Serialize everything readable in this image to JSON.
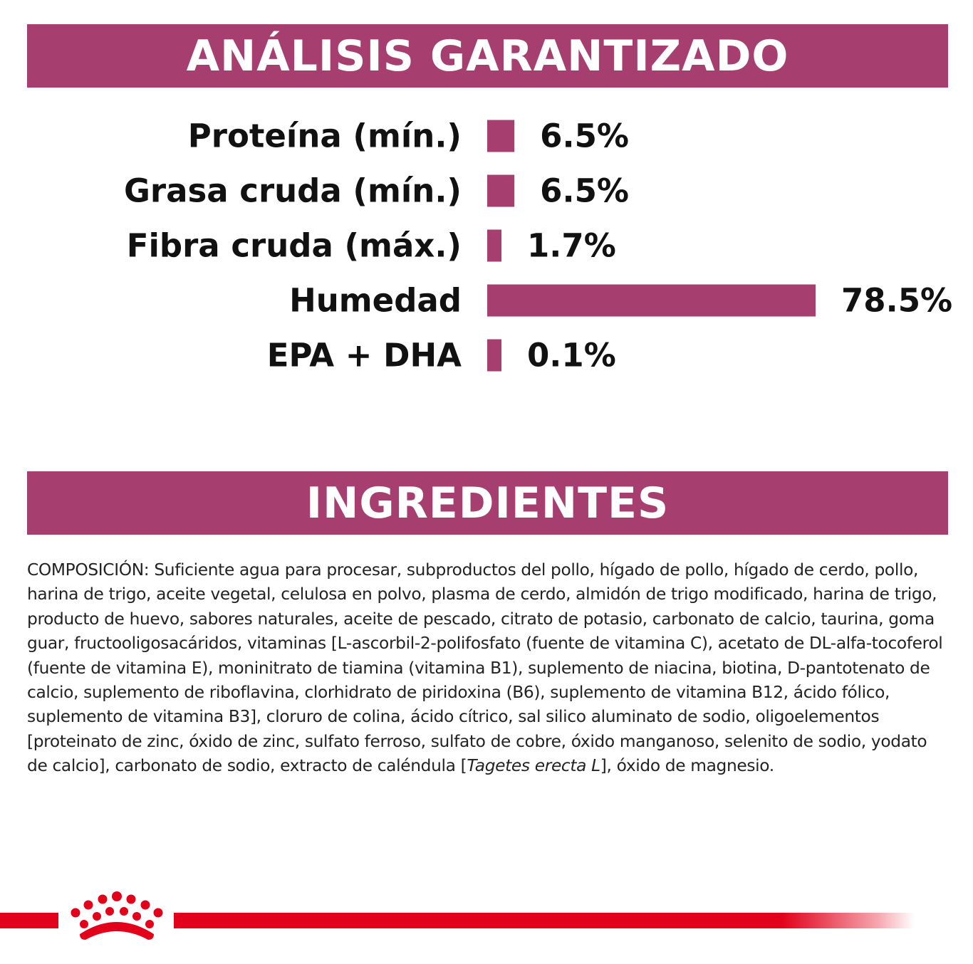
{
  "header": {
    "analysis_title": "ANÁLISIS GARANTIZADO",
    "ingredients_title": "INGREDIENTES"
  },
  "chart_data": {
    "type": "bar",
    "orientation": "horizontal",
    "categories": [
      "Proteína (mín.)",
      "Grasa cruda (mín.)",
      "Fibra cruda (máx.)",
      "Humedad",
      "EPA + DHA"
    ],
    "values": [
      6.5,
      6.5,
      1.7,
      78.5,
      0.1
    ],
    "value_labels": [
      "6.5%",
      "6.5%",
      "1.7%",
      "78.5%",
      "0.1%"
    ],
    "unit": "%",
    "grid": false,
    "bar_color": "#a63f70"
  },
  "ingredients": {
    "composition_text": "COMPOSICIÓN: Suficiente agua para procesar, subproductos del pollo, hígado de pollo, hígado de cerdo, pollo, harina de trigo, aceite vegetal, celulosa en polvo, plasma de cerdo, almidón de trigo modificado, harina de trigo, producto de huevo, sabores naturales, aceite de pescado, citrato de potasio, carbonato de calcio, taurina, goma guar, fructooligosacáridos, vitaminas [L-ascorbil-2-polifosfato (fuente de vitamina C), acetato de DL-alfa-tocoferol (fuente de vitamina E), moninitrato de tiamina (vitamina B1), suplemento de niacina, biotina, D-pantotenato de calcio, suplemento de riboflavina, clorhidrato de piridoxina (B6), suplemento de vitamina B12, ácido fólico, suplemento de vitamina B3], cloruro de colina, ácido cítrico, sal silico aluminato de sodio, oligoelementos [proteinato de zinc, óxido de zinc, sulfato ferroso, sulfato de cobre, óxido manganoso, selenito de sodio, yodato de calcio], carbonato de sodio, extracto de caléndula [",
    "italic_text": "Tagetes erecta L",
    "closing_text": "], óxido de magnesio."
  },
  "brand": {
    "logo_icon": "royal-canin-crown-icon",
    "accent_color": "#e2001a",
    "primary_color": "#a63f70"
  }
}
